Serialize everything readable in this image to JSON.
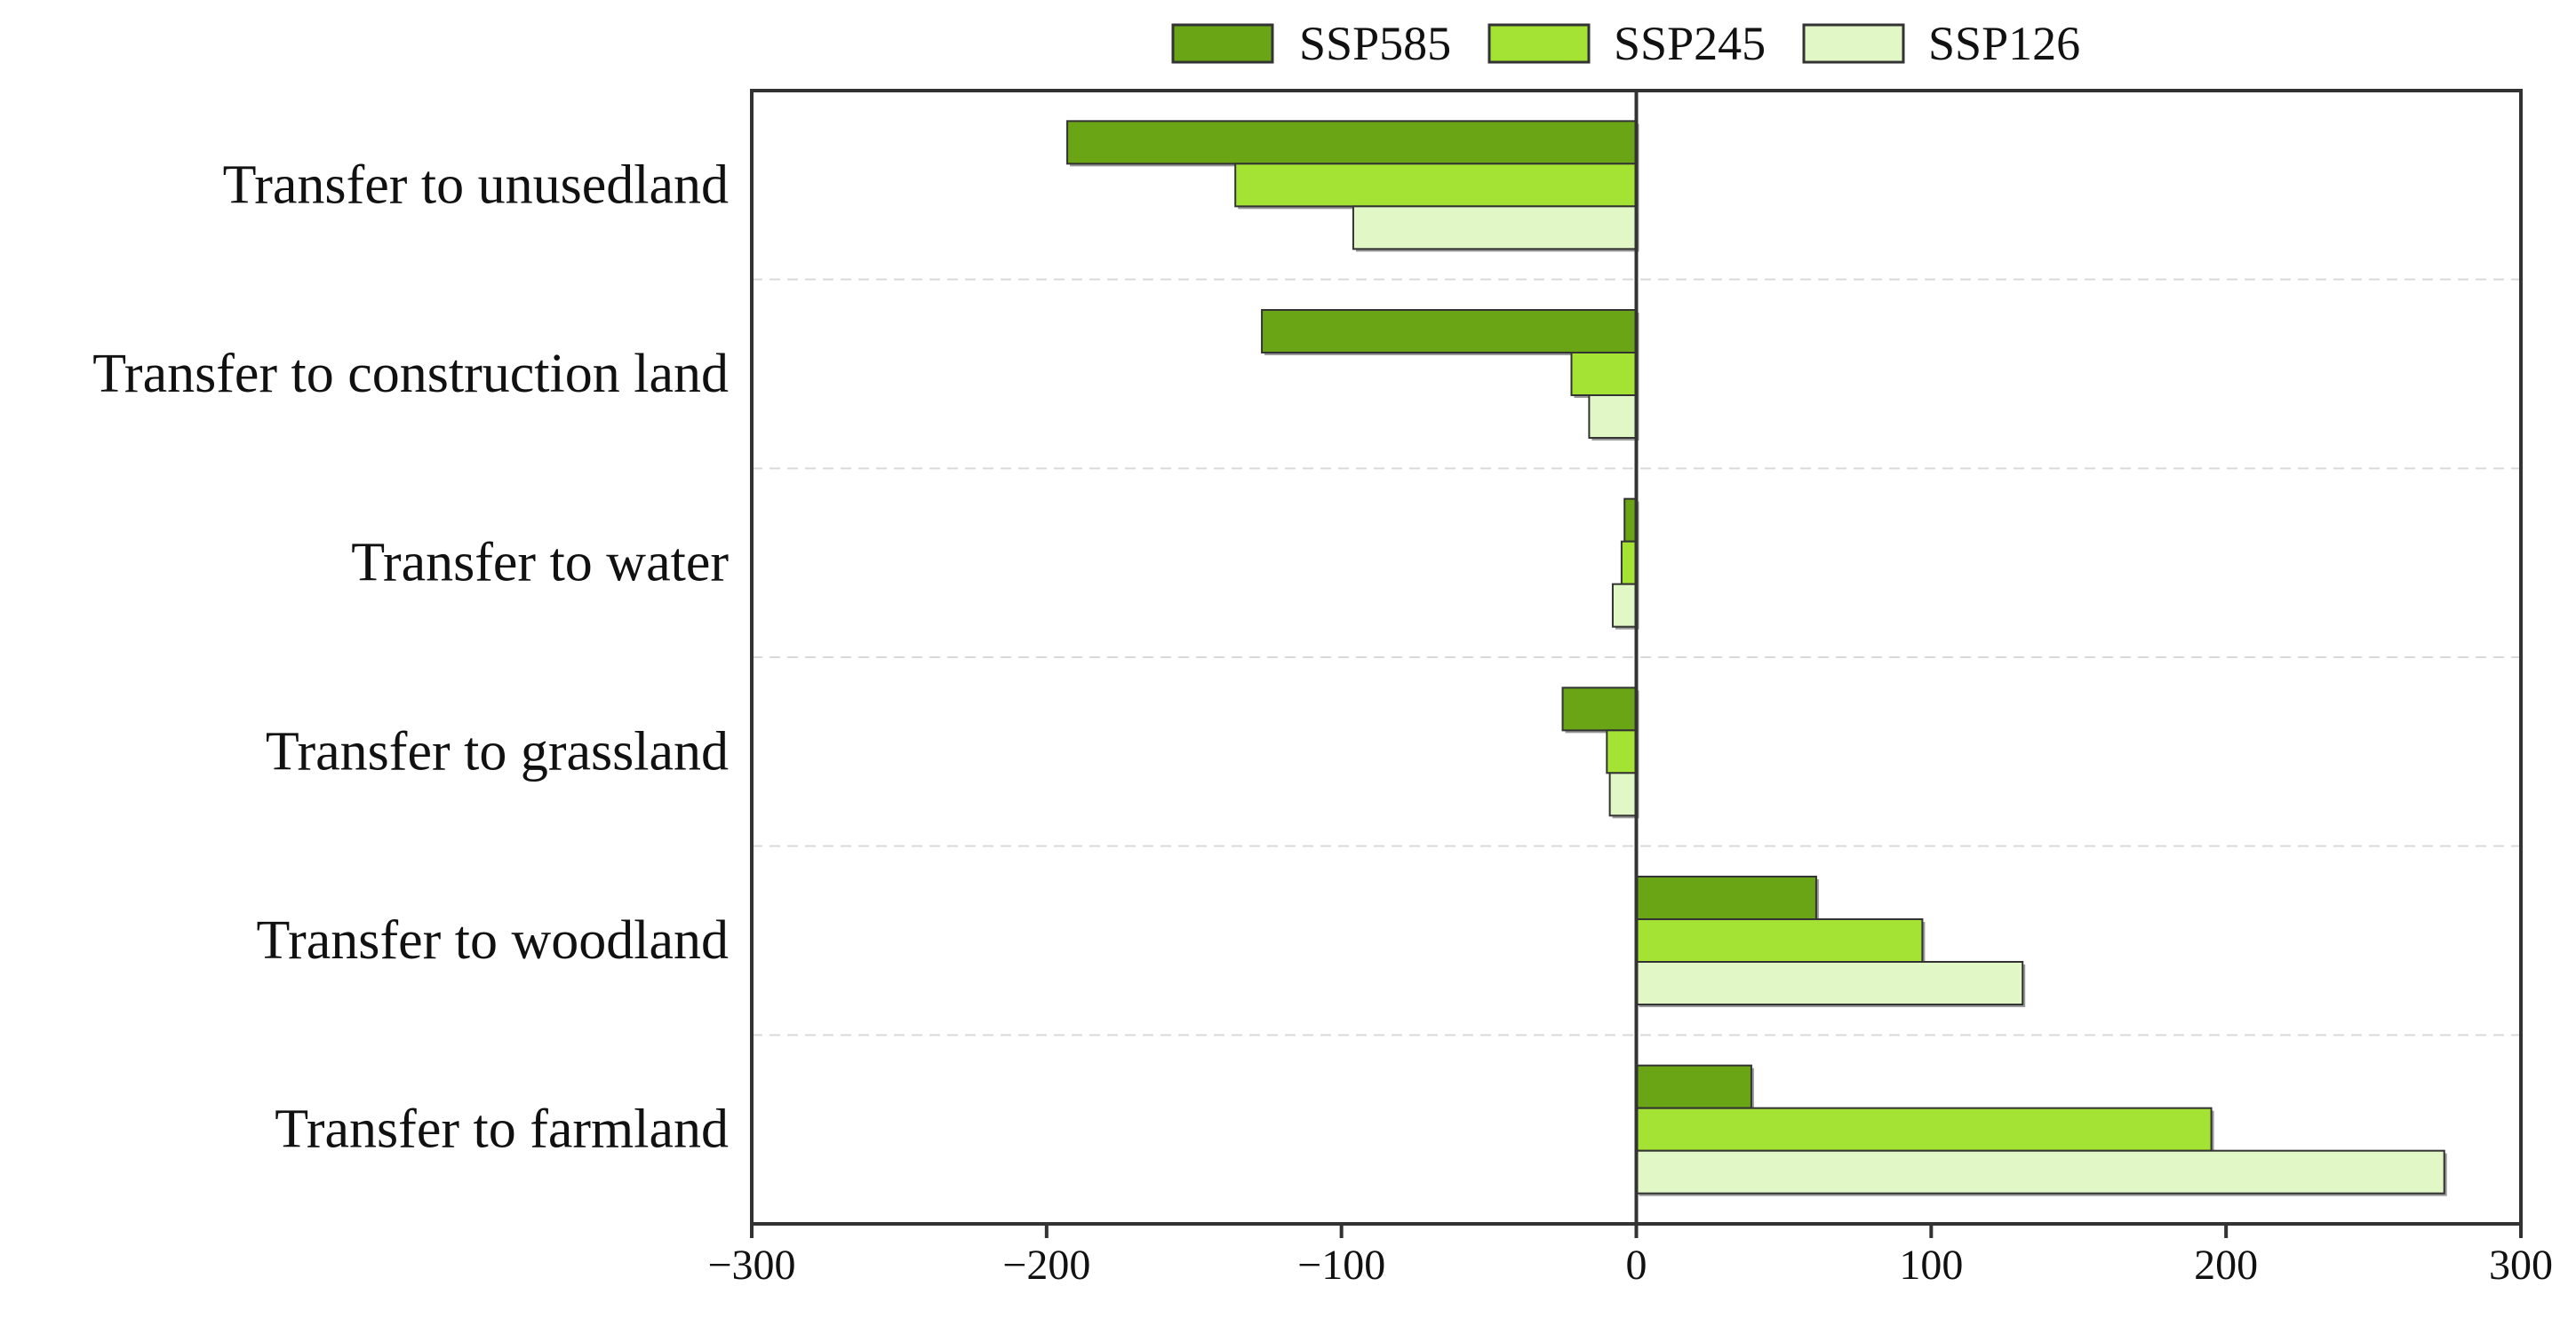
{
  "chart_data": {
    "type": "bar",
    "orientation": "horizontal",
    "title": "",
    "xlabel": "",
    "ylabel": "",
    "xlim": [
      -300,
      300
    ],
    "xticks": [
      -300,
      -200,
      -100,
      0,
      100,
      200,
      300
    ],
    "xtick_labels": [
      "−300",
      "−200",
      "−100",
      "0",
      "100",
      "200",
      "300"
    ],
    "grid": "horizontal dashed",
    "legend_position": "top-center",
    "categories": [
      "Transfer to unusedland",
      "Transfer to construction land",
      "Transfer to water",
      "Transfer to grassland",
      "Transfer to woodland",
      "Transfer to farmland"
    ],
    "series": [
      {
        "name": "SSP585",
        "color": "#6aa515",
        "values": [
          -193,
          -127,
          -4,
          -25,
          61,
          39
        ]
      },
      {
        "name": "SSP245",
        "color": "#a4e234",
        "values": [
          -136,
          -22,
          -5,
          -10,
          97,
          195
        ]
      },
      {
        "name": "SSP126",
        "color": "#e1f7c5",
        "values": [
          -96,
          -16,
          -8,
          -9,
          131,
          274
        ]
      }
    ]
  }
}
